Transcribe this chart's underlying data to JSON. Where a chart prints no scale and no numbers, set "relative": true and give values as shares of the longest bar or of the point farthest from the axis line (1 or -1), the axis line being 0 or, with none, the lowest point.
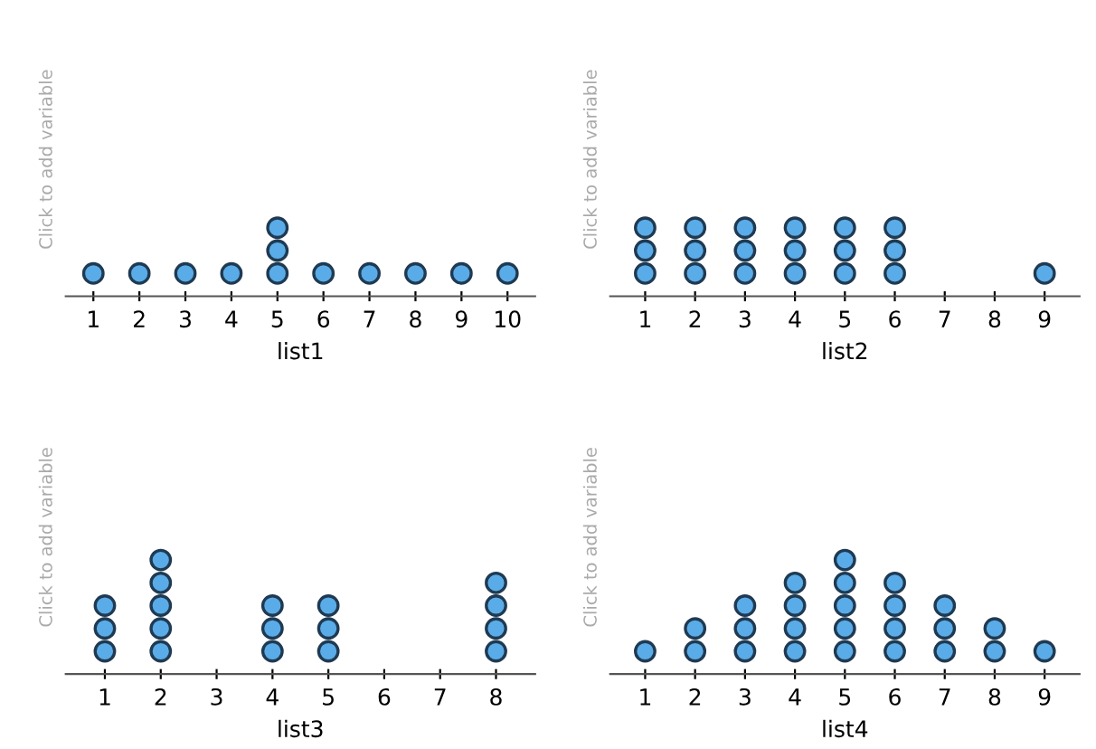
{
  "chart_data": [
    {
      "type": "scatter",
      "xlabel": "list1",
      "ylabel": "Click to add variable",
      "tick_labels": "x",
      "marker": "circle",
      "relative": true,
      "xlim": [
        0.4,
        10.6
      ],
      "xticks": [
        1,
        2,
        3,
        4,
        5,
        6,
        7,
        8,
        9,
        10
      ],
      "series": [
        {
          "color": "#5aace8",
          "x": [
            1,
            2,
            3,
            4,
            5,
            5,
            5,
            6,
            7,
            8,
            9,
            10
          ],
          "values": [
            0.333,
            0.333,
            0.333,
            0.333,
            0.333,
            0.667,
            1,
            0.333,
            0.333,
            0.333,
            0.333,
            0.333
          ]
        }
      ]
    },
    {
      "type": "scatter",
      "xlabel": "list2",
      "ylabel": "Click to add variable",
      "tick_labels": "x",
      "marker": "circle",
      "relative": true,
      "xlim": [
        0.3,
        9.7
      ],
      "xticks": [
        1,
        2,
        3,
        4,
        5,
        6,
        7,
        8,
        9
      ],
      "series": [
        {
          "color": "#5aace8",
          "x": [
            1,
            1,
            1,
            2,
            2,
            2,
            3,
            3,
            3,
            4,
            4,
            4,
            5,
            5,
            5,
            6,
            6,
            6,
            9
          ],
          "values": [
            0.333,
            0.667,
            1,
            0.333,
            0.667,
            1,
            0.333,
            0.667,
            1,
            0.333,
            0.667,
            1,
            0.333,
            0.667,
            1,
            0.333,
            0.667,
            1,
            0.333
          ]
        }
      ]
    },
    {
      "type": "scatter",
      "xlabel": "list3",
      "ylabel": "Click to add variable",
      "tick_labels": "x",
      "marker": "circle",
      "relative": true,
      "xlim": [
        0.3,
        8.7
      ],
      "xticks": [
        1,
        2,
        3,
        4,
        5,
        6,
        7,
        8
      ],
      "series": [
        {
          "color": "#5aace8",
          "x": [
            1,
            1,
            1,
            2,
            2,
            2,
            2,
            2,
            4,
            4,
            4,
            5,
            5,
            5,
            8,
            8,
            8,
            8
          ],
          "values": [
            0.2,
            0.4,
            0.6,
            0.2,
            0.4,
            0.6,
            0.8,
            1,
            0.2,
            0.4,
            0.6,
            0.2,
            0.4,
            0.6,
            0.2,
            0.4,
            0.6,
            0.8
          ]
        }
      ]
    },
    {
      "type": "scatter",
      "xlabel": "list4",
      "ylabel": "Click to add variable",
      "tick_labels": "x",
      "marker": "circle",
      "relative": true,
      "xlim": [
        0.3,
        9.7
      ],
      "xticks": [
        1,
        2,
        3,
        4,
        5,
        6,
        7,
        8,
        9
      ],
      "series": [
        {
          "color": "#5aace8",
          "x": [
            1,
            2,
            2,
            3,
            3,
            3,
            4,
            4,
            4,
            4,
            5,
            5,
            5,
            5,
            5,
            6,
            6,
            6,
            6,
            7,
            7,
            7,
            8,
            8,
            9
          ],
          "values": [
            0.2,
            0.2,
            0.4,
            0.2,
            0.4,
            0.6,
            0.2,
            0.4,
            0.6,
            0.8,
            0.2,
            0.4,
            0.6,
            0.8,
            1,
            0.2,
            0.4,
            0.6,
            0.8,
            0.2,
            0.4,
            0.6,
            0.2,
            0.4,
            0.2
          ]
        }
      ]
    }
  ]
}
